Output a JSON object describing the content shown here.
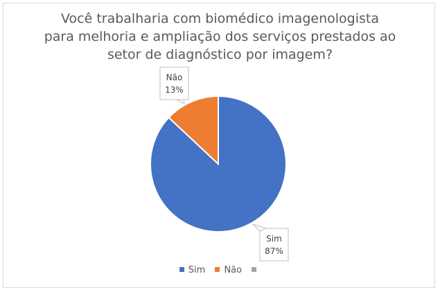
{
  "chart_data": {
    "type": "pie",
    "title_lines": [
      "Você trabalharia com biomédico imagenologista",
      "para melhoria e ampliação dos serviços prestados ao",
      "setor de diagnóstico por imagem?"
    ],
    "slices": [
      {
        "label": "Sim",
        "value": 87,
        "value_label": "87%",
        "color": "#4472C4"
      },
      {
        "label": "Não",
        "value": 13,
        "value_label": "13%",
        "color": "#ED7D31"
      }
    ],
    "legend": [
      {
        "label": "Sim",
        "color": "#4472C4"
      },
      {
        "label": "Não",
        "color": "#ED7D31"
      },
      {
        "label": "",
        "color": "#A5A5A5"
      }
    ],
    "legend_position": "bottom"
  }
}
